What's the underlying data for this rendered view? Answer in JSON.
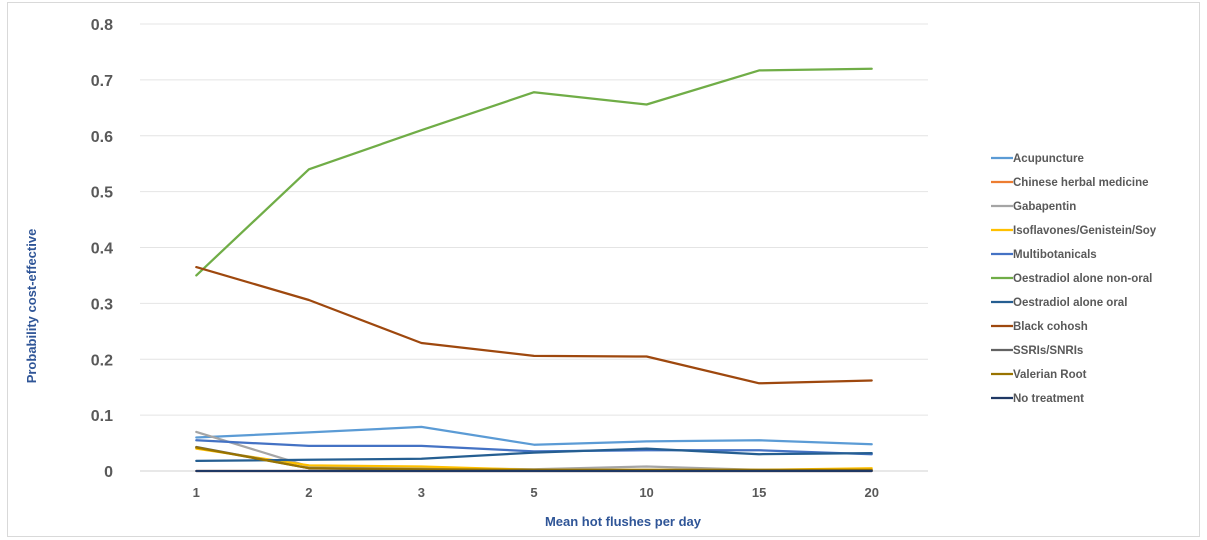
{
  "chart_data": {
    "type": "line",
    "title": "",
    "xlabel": "Mean hot flushes per day",
    "ylabel": "Probability cost-effective",
    "categories": [
      "1",
      "2",
      "3",
      "5",
      "10",
      "15",
      "20"
    ],
    "ylim": [
      0,
      0.8
    ],
    "yticks": [
      "0",
      "0.1",
      "0.2",
      "0.3",
      "0.4",
      "0.5",
      "0.6",
      "0.7",
      "0.8"
    ],
    "grid": true,
    "legend_position": "right",
    "series": [
      {
        "name": "Acupuncture",
        "color": "#5b9bd5",
        "values": [
          0.06,
          0.069,
          0.079,
          0.047,
          0.053,
          0.055,
          0.048
        ]
      },
      {
        "name": "Chinese herbal medicine",
        "color": "#ed7d31",
        "values": [
          0.0,
          0.0,
          0.0,
          0.0,
          0.0,
          0.0,
          0.0
        ]
      },
      {
        "name": "Gabapentin",
        "color": "#a5a5a5",
        "values": [
          0.07,
          0.008,
          0.005,
          0.003,
          0.008,
          0.002,
          0.001
        ]
      },
      {
        "name": "Isoflavones/Genistein/Soy",
        "color": "#ffc000",
        "values": [
          0.04,
          0.01,
          0.008,
          0.002,
          0.002,
          0.002,
          0.005
        ]
      },
      {
        "name": "Multibotanicals",
        "color": "#4472c4",
        "values": [
          0.055,
          0.045,
          0.045,
          0.035,
          0.037,
          0.037,
          0.03
        ]
      },
      {
        "name": "Oestradiol alone non-oral",
        "color": "#70ad47",
        "values": [
          0.35,
          0.54,
          0.61,
          0.678,
          0.656,
          0.717,
          0.72
        ]
      },
      {
        "name": "Oestradiol alone oral",
        "color": "#255e91",
        "values": [
          0.018,
          0.02,
          0.022,
          0.033,
          0.04,
          0.03,
          0.032
        ]
      },
      {
        "name": "Black cohosh",
        "color": "#9e480e",
        "values": [
          0.365,
          0.306,
          0.229,
          0.206,
          0.205,
          0.157,
          0.162
        ]
      },
      {
        "name": "SSRIs/SNRIs",
        "color": "#636363",
        "values": [
          0.043,
          0.005,
          0.002,
          0.001,
          0.001,
          0.001,
          0.001
        ]
      },
      {
        "name": "Valerian Root",
        "color": "#997300",
        "values": [
          0.042,
          0.005,
          0.003,
          0.002,
          0.002,
          0.002,
          0.002
        ]
      },
      {
        "name": "No treatment",
        "color": "#1f3864",
        "values": [
          0.0,
          0.0,
          0.0,
          0.0,
          0.0,
          0.0,
          0.0
        ]
      }
    ]
  }
}
